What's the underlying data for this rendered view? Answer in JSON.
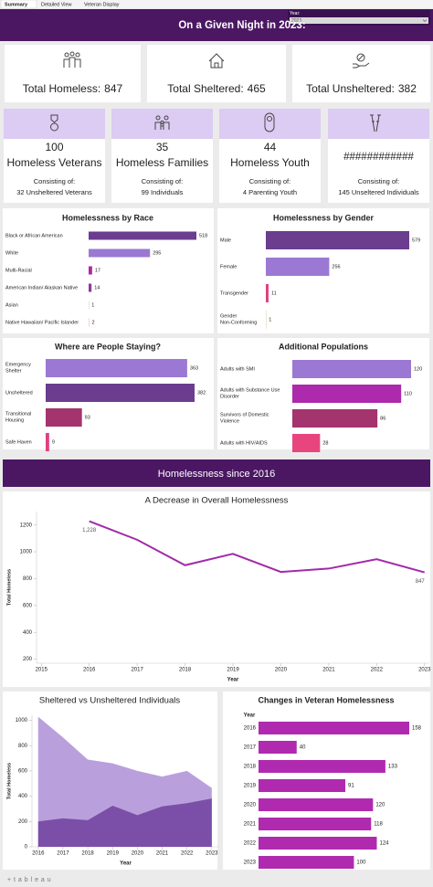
{
  "tabs": [
    "Summary",
    "Detailed View",
    "Veteran Display"
  ],
  "header": {
    "title": "On a Given Night in  2023:",
    "filter_label": "Year:",
    "filter_value": "2023"
  },
  "kpis": [
    {
      "label": "Total Homeless:",
      "value": 847
    },
    {
      "label": "Total Sheltered:",
      "value": 465
    },
    {
      "label": "Total Unsheltered:",
      "value": 382
    }
  ],
  "cards": [
    {
      "headline": "100",
      "label": "Homeless Veterans",
      "sub": "Consisting of:",
      "detail": "32 Unsheltered Veterans"
    },
    {
      "headline": "35",
      "label": "Homeless Families",
      "sub": "Consisting of:",
      "detail": "99 Individuals"
    },
    {
      "headline": "44",
      "label": "Homeless Youth",
      "sub": "Consisting of:",
      "detail": "4 Parenting Youth"
    },
    {
      "headline": "############",
      "sub": "Consisting of:",
      "detail": "145 Unseltered Individuals"
    }
  ],
  "section_title": "Homelessness since 2016",
  "footer": "+ t a b l e a u",
  "chart_data": [
    {
      "type": "hbar",
      "title": "Homelessness by Race",
      "categories": [
        "Black or African American",
        "White",
        "Multi-Racial",
        "American Indian/ Alaskan Native",
        "Asian",
        "Native Hawaiian/ Pacific Islander"
      ],
      "values": [
        518,
        295,
        17,
        14,
        1,
        2
      ],
      "colors": [
        "#6a3d8f",
        "#9b78d3",
        "#b0289f",
        "#8e3a9c",
        "#e46aa6",
        "#e8a07a"
      ]
    },
    {
      "type": "hbar",
      "title": "Homelessness by Gender",
      "categories": [
        "Male",
        "Female",
        "Transgender",
        "Gender Non-Conforming"
      ],
      "values": [
        579,
        256,
        11,
        1
      ],
      "colors": [
        "#6a3d8f",
        "#9b78d3",
        "#e0417f",
        "#c9a070"
      ]
    },
    {
      "type": "hbar",
      "title": "Where are People Staying?",
      "categories": [
        "Emergency Shelter",
        "Unsheltered",
        "Transitional Housing",
        "Safe Haven"
      ],
      "values": [
        363,
        382,
        93,
        9
      ],
      "colors": [
        "#9b78d3",
        "#6a3d8f",
        "#a3346e",
        "#e0417f"
      ]
    },
    {
      "type": "hbar",
      "title": "Additional Populations",
      "categories": [
        "Adults with SMI",
        "Adults with Substance Use Disorder",
        "Survivors of Domestic Violence",
        "Adults with HIV/AIDS"
      ],
      "values": [
        120,
        110,
        86,
        28
      ],
      "colors": [
        "#9b78d3",
        "#ac2aab",
        "#a3346e",
        "#e8457f"
      ]
    },
    {
      "type": "line",
      "title": "A Decrease in Overall Homelessness",
      "x_label": "Year",
      "y_label": "Total Homeless",
      "x": [
        2016,
        2017,
        2018,
        2019,
        2020,
        2021,
        2022,
        2023
      ],
      "values": [
        1228,
        1090,
        900,
        985,
        850,
        875,
        945,
        847
      ],
      "value_labels": [
        "1,228",
        null,
        null,
        null,
        null,
        null,
        null,
        "847"
      ],
      "color": "#a22aa8",
      "xlim": [
        2014.9,
        2023.1
      ],
      "xticks": [
        2015,
        2016,
        2017,
        2018,
        2019,
        2020,
        2021,
        2022,
        2023
      ],
      "ylim": [
        170,
        1300
      ],
      "yticks": [
        200,
        400,
        600,
        800,
        1000,
        1200
      ]
    },
    {
      "type": "area",
      "title": "Sheltered vs Unsheltered Individuals",
      "x_label": "Year",
      "y_label": "Total Homeless",
      "x": [
        2016,
        2017,
        2018,
        2019,
        2020,
        2021,
        2022,
        2023
      ],
      "series": [
        {
          "color": "#b9a0dc",
          "values": [
            1028,
            865,
            690,
            660,
            600,
            555,
            600,
            465
          ]
        },
        {
          "color": "#7b4fa8",
          "values": [
            200,
            225,
            210,
            325,
            250,
            320,
            345,
            382
          ]
        }
      ],
      "xlim": [
        2015.75,
        2023.3
      ],
      "xticks": [
        2016,
        2017,
        2018,
        2019,
        2020,
        2021,
        2022,
        2023
      ],
      "ylim": [
        0,
        1040
      ],
      "yticks": [
        0,
        200,
        400,
        600,
        800,
        1000
      ]
    },
    {
      "type": "hbar",
      "title": "Changes in Veteran Homelessness",
      "y_label": "Year",
      "categories": [
        "2016",
        "2017",
        "2018",
        "2019",
        "2020",
        "2021",
        "2022",
        "2023"
      ],
      "values": [
        158,
        40,
        133,
        91,
        120,
        118,
        124,
        100
      ],
      "color": "#b02ab0"
    }
  ]
}
